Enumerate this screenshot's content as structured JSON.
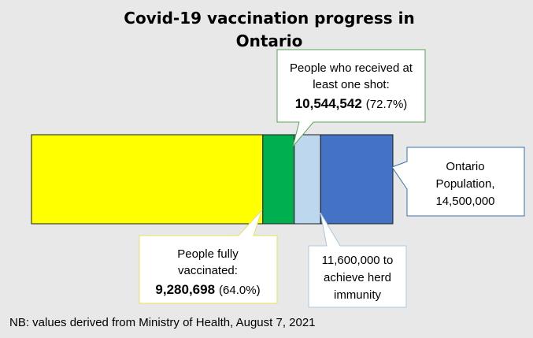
{
  "chart_data": {
    "type": "bar",
    "title_lines": [
      "Covid-19 vaccination progress in",
      "Ontario"
    ],
    "max": 14500000,
    "segments": [
      {
        "name": "fully_vaccinated",
        "value": 9280698,
        "color": "#ffff00"
      },
      {
        "name": "one_shot",
        "value": 10544542,
        "color": "#00b050"
      },
      {
        "name": "herd_immunity",
        "value": 11600000,
        "color": "#bdd7ee"
      },
      {
        "name": "population",
        "value": 14500000,
        "color": "#4472c4"
      }
    ],
    "callouts": {
      "one_shot": {
        "line1": "People who received at",
        "line2": "least one shot:",
        "value": "10,544,542",
        "pct": "(72.7%)"
      },
      "fully": {
        "line1": "People fully",
        "line2": "vaccinated:",
        "value": "9,280,698",
        "pct": "(64.0%)"
      },
      "population": {
        "line1": "Ontario",
        "line2": "Population,",
        "line3": "14,500,000"
      },
      "herd": {
        "line1": "11,600,000 to",
        "line2": "achieve herd",
        "line3": "immunity"
      }
    },
    "note": "NB: values derived from Ministry of Health, August 7, 2021"
  },
  "colors": {
    "background": "#e8e8e8",
    "bar_border": "#1a1a1a",
    "callout_one_shot_border": "#5aa15a",
    "callout_fully_border": "#e8e060",
    "callout_population_border": "#3a6fa8",
    "callout_herd_border": "#a8c8e0"
  }
}
